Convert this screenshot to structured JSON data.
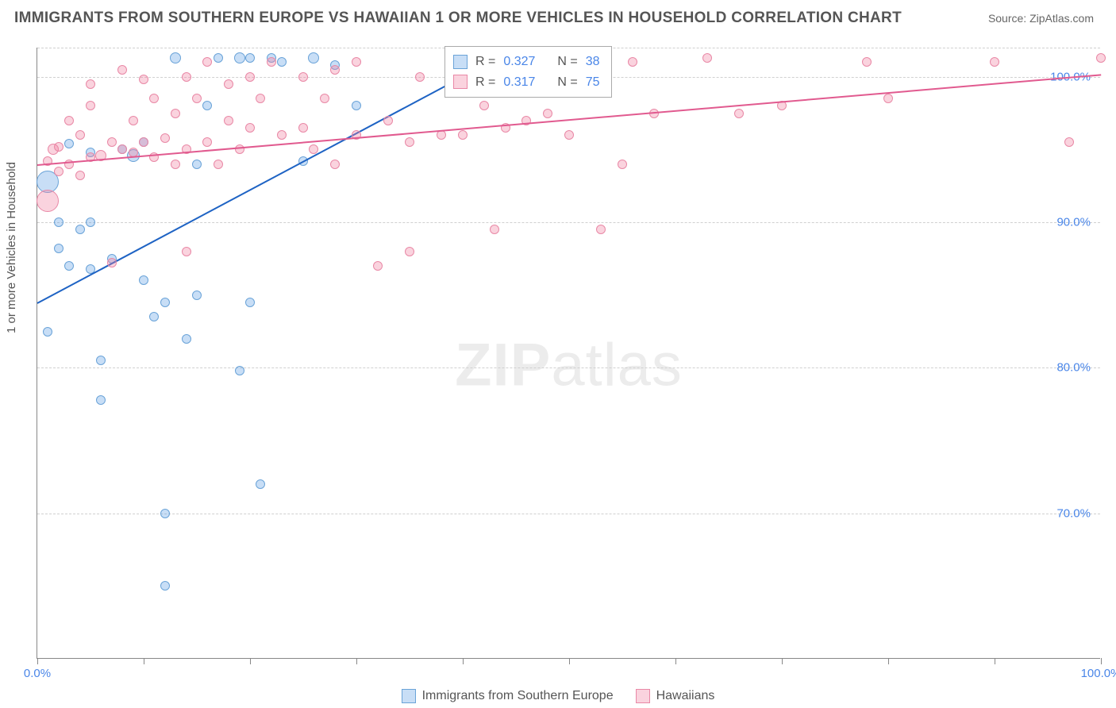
{
  "header": {
    "title": "IMMIGRANTS FROM SOUTHERN EUROPE VS HAWAIIAN 1 OR MORE VEHICLES IN HOUSEHOLD CORRELATION CHART",
    "source": "Source: ZipAtlas.com"
  },
  "watermark": {
    "zip": "ZIP",
    "atlas": "atlas"
  },
  "chart": {
    "type": "scatter",
    "ylabel": "1 or more Vehicles in Household",
    "xlim": [
      0,
      100
    ],
    "ylim": [
      60,
      102
    ],
    "yticks": [
      {
        "v": 70,
        "label": "70.0%"
      },
      {
        "v": 80,
        "label": "80.0%"
      },
      {
        "v": 90,
        "label": "90.0%"
      },
      {
        "v": 100,
        "label": "100.0%"
      }
    ],
    "xticks_minor": [
      0,
      10,
      20,
      30,
      40,
      50,
      60,
      70,
      80,
      90,
      100
    ],
    "xticks_label": [
      {
        "v": 0,
        "label": "0.0%"
      },
      {
        "v": 100,
        "label": "100.0%"
      }
    ],
    "background_color": "#ffffff",
    "grid_color": "#d0d0d0",
    "axis_color": "#888888",
    "series": [
      {
        "name": "Immigrants from Southern Europe",
        "fill": "rgba(96,160,230,0.35)",
        "stroke": "#6aa3d8",
        "trend_color": "#1e63c4",
        "trend": {
          "x1": 0,
          "y1": 84.5,
          "x2": 45,
          "y2": 102
        },
        "r_label": "R =",
        "r_value": "0.327",
        "n_label": "N =",
        "n_value": "38",
        "points": [
          {
            "x": 1,
            "y": 92.8,
            "r": 14
          },
          {
            "x": 1,
            "y": 82.5,
            "r": 6
          },
          {
            "x": 2,
            "y": 88.2,
            "r": 6
          },
          {
            "x": 2,
            "y": 90.0,
            "r": 6
          },
          {
            "x": 3,
            "y": 87.0,
            "r": 6
          },
          {
            "x": 3,
            "y": 95.4,
            "r": 6
          },
          {
            "x": 4,
            "y": 89.5,
            "r": 6
          },
          {
            "x": 5,
            "y": 86.8,
            "r": 6
          },
          {
            "x": 5,
            "y": 90.0,
            "r": 6
          },
          {
            "x": 5,
            "y": 94.8,
            "r": 6
          },
          {
            "x": 6,
            "y": 77.8,
            "r": 6
          },
          {
            "x": 6,
            "y": 80.5,
            "r": 6
          },
          {
            "x": 7,
            "y": 87.5,
            "r": 6
          },
          {
            "x": 8,
            "y": 95.0,
            "r": 6
          },
          {
            "x": 9,
            "y": 94.6,
            "r": 8
          },
          {
            "x": 10,
            "y": 86.0,
            "r": 6
          },
          {
            "x": 10,
            "y": 95.5,
            "r": 6
          },
          {
            "x": 11,
            "y": 83.5,
            "r": 6
          },
          {
            "x": 12,
            "y": 70.0,
            "r": 6
          },
          {
            "x": 12,
            "y": 84.5,
            "r": 6
          },
          {
            "x": 12,
            "y": 65.0,
            "r": 6
          },
          {
            "x": 13,
            "y": 101.3,
            "r": 7
          },
          {
            "x": 14,
            "y": 82.0,
            "r": 6
          },
          {
            "x": 15,
            "y": 85.0,
            "r": 6
          },
          {
            "x": 15,
            "y": 94.0,
            "r": 6
          },
          {
            "x": 16,
            "y": 98.0,
            "r": 6
          },
          {
            "x": 17,
            "y": 101.3,
            "r": 6
          },
          {
            "x": 19,
            "y": 79.8,
            "r": 6
          },
          {
            "x": 19,
            "y": 101.3,
            "r": 7
          },
          {
            "x": 20,
            "y": 101.3,
            "r": 6
          },
          {
            "x": 20,
            "y": 84.5,
            "r": 6
          },
          {
            "x": 21,
            "y": 72.0,
            "r": 6
          },
          {
            "x": 22,
            "y": 101.3,
            "r": 6
          },
          {
            "x": 23,
            "y": 101.0,
            "r": 6
          },
          {
            "x": 25,
            "y": 94.2,
            "r": 6
          },
          {
            "x": 26,
            "y": 101.3,
            "r": 7
          },
          {
            "x": 28,
            "y": 100.8,
            "r": 6
          },
          {
            "x": 30,
            "y": 98.0,
            "r": 6
          }
        ]
      },
      {
        "name": "Hawaiians",
        "fill": "rgba(240,130,160,0.35)",
        "stroke": "#e988a6",
        "trend_color": "#e15a8f",
        "trend": {
          "x1": 0,
          "y1": 94.0,
          "x2": 100,
          "y2": 100.2
        },
        "r_label": "R =",
        "r_value": "0.317",
        "n_label": "N =",
        "n_value": "75",
        "points": [
          {
            "x": 1,
            "y": 91.5,
            "r": 14
          },
          {
            "x": 1,
            "y": 94.2,
            "r": 6
          },
          {
            "x": 1.5,
            "y": 95.0,
            "r": 7
          },
          {
            "x": 2,
            "y": 93.5,
            "r": 6
          },
          {
            "x": 2,
            "y": 95.2,
            "r": 6
          },
          {
            "x": 3,
            "y": 94.0,
            "r": 6
          },
          {
            "x": 3,
            "y": 97.0,
            "r": 6
          },
          {
            "x": 4,
            "y": 93.2,
            "r": 6
          },
          {
            "x": 4,
            "y": 96.0,
            "r": 6
          },
          {
            "x": 5,
            "y": 94.5,
            "r": 6
          },
          {
            "x": 5,
            "y": 98.0,
            "r": 6
          },
          {
            "x": 5,
            "y": 99.5,
            "r": 6
          },
          {
            "x": 6,
            "y": 94.6,
            "r": 7
          },
          {
            "x": 7,
            "y": 95.5,
            "r": 6
          },
          {
            "x": 7,
            "y": 87.2,
            "r": 6
          },
          {
            "x": 8,
            "y": 95.0,
            "r": 6
          },
          {
            "x": 8,
            "y": 100.5,
            "r": 6
          },
          {
            "x": 9,
            "y": 94.8,
            "r": 6
          },
          {
            "x": 9,
            "y": 97.0,
            "r": 6
          },
          {
            "x": 10,
            "y": 95.5,
            "r": 6
          },
          {
            "x": 10,
            "y": 99.8,
            "r": 6
          },
          {
            "x": 11,
            "y": 94.5,
            "r": 6
          },
          {
            "x": 11,
            "y": 98.5,
            "r": 6
          },
          {
            "x": 12,
            "y": 95.8,
            "r": 6
          },
          {
            "x": 13,
            "y": 94.0,
            "r": 6
          },
          {
            "x": 13,
            "y": 97.5,
            "r": 6
          },
          {
            "x": 14,
            "y": 95.0,
            "r": 6
          },
          {
            "x": 14,
            "y": 100.0,
            "r": 6
          },
          {
            "x": 14,
            "y": 88.0,
            "r": 6
          },
          {
            "x": 15,
            "y": 98.5,
            "r": 6
          },
          {
            "x": 16,
            "y": 95.5,
            "r": 6
          },
          {
            "x": 16,
            "y": 101.0,
            "r": 6
          },
          {
            "x": 17,
            "y": 94.0,
            "r": 6
          },
          {
            "x": 18,
            "y": 99.5,
            "r": 6
          },
          {
            "x": 18,
            "y": 97.0,
            "r": 6
          },
          {
            "x": 19,
            "y": 95.0,
            "r": 6
          },
          {
            "x": 20,
            "y": 100.0,
            "r": 6
          },
          {
            "x": 20,
            "y": 96.5,
            "r": 6
          },
          {
            "x": 21,
            "y": 98.5,
            "r": 6
          },
          {
            "x": 22,
            "y": 101.0,
            "r": 6
          },
          {
            "x": 23,
            "y": 96.0,
            "r": 6
          },
          {
            "x": 25,
            "y": 100.0,
            "r": 6
          },
          {
            "x": 25,
            "y": 96.5,
            "r": 6
          },
          {
            "x": 26,
            "y": 95.0,
            "r": 6
          },
          {
            "x": 27,
            "y": 98.5,
            "r": 6
          },
          {
            "x": 28,
            "y": 100.5,
            "r": 6
          },
          {
            "x": 28,
            "y": 94.0,
            "r": 6
          },
          {
            "x": 30,
            "y": 96.0,
            "r": 6
          },
          {
            "x": 30,
            "y": 101.0,
            "r": 6
          },
          {
            "x": 32,
            "y": 87.0,
            "r": 6
          },
          {
            "x": 33,
            "y": 97.0,
            "r": 6
          },
          {
            "x": 35,
            "y": 88.0,
            "r": 6
          },
          {
            "x": 35,
            "y": 95.5,
            "r": 6
          },
          {
            "x": 36,
            "y": 100.0,
            "r": 6
          },
          {
            "x": 38,
            "y": 96.0,
            "r": 6
          },
          {
            "x": 40,
            "y": 96.0,
            "r": 6
          },
          {
            "x": 42,
            "y": 98.0,
            "r": 6
          },
          {
            "x": 43,
            "y": 89.5,
            "r": 6
          },
          {
            "x": 44,
            "y": 96.5,
            "r": 6
          },
          {
            "x": 46,
            "y": 97.0,
            "r": 6
          },
          {
            "x": 48,
            "y": 97.5,
            "r": 6
          },
          {
            "x": 50,
            "y": 99.0,
            "r": 6
          },
          {
            "x": 50,
            "y": 96.0,
            "r": 6
          },
          {
            "x": 53,
            "y": 89.5,
            "r": 6
          },
          {
            "x": 55,
            "y": 94.0,
            "r": 6
          },
          {
            "x": 56,
            "y": 101.0,
            "r": 6
          },
          {
            "x": 58,
            "y": 97.5,
            "r": 6
          },
          {
            "x": 63,
            "y": 101.3,
            "r": 6
          },
          {
            "x": 66,
            "y": 97.5,
            "r": 6
          },
          {
            "x": 70,
            "y": 98.0,
            "r": 6
          },
          {
            "x": 78,
            "y": 101.0,
            "r": 6
          },
          {
            "x": 80,
            "y": 98.5,
            "r": 6
          },
          {
            "x": 90,
            "y": 101.0,
            "r": 6
          },
          {
            "x": 97,
            "y": 95.5,
            "r": 6
          },
          {
            "x": 100,
            "y": 101.3,
            "r": 6
          }
        ]
      }
    ]
  },
  "legend_bottom": {
    "series1": "Immigrants from Southern Europe",
    "series2": "Hawaiians"
  }
}
